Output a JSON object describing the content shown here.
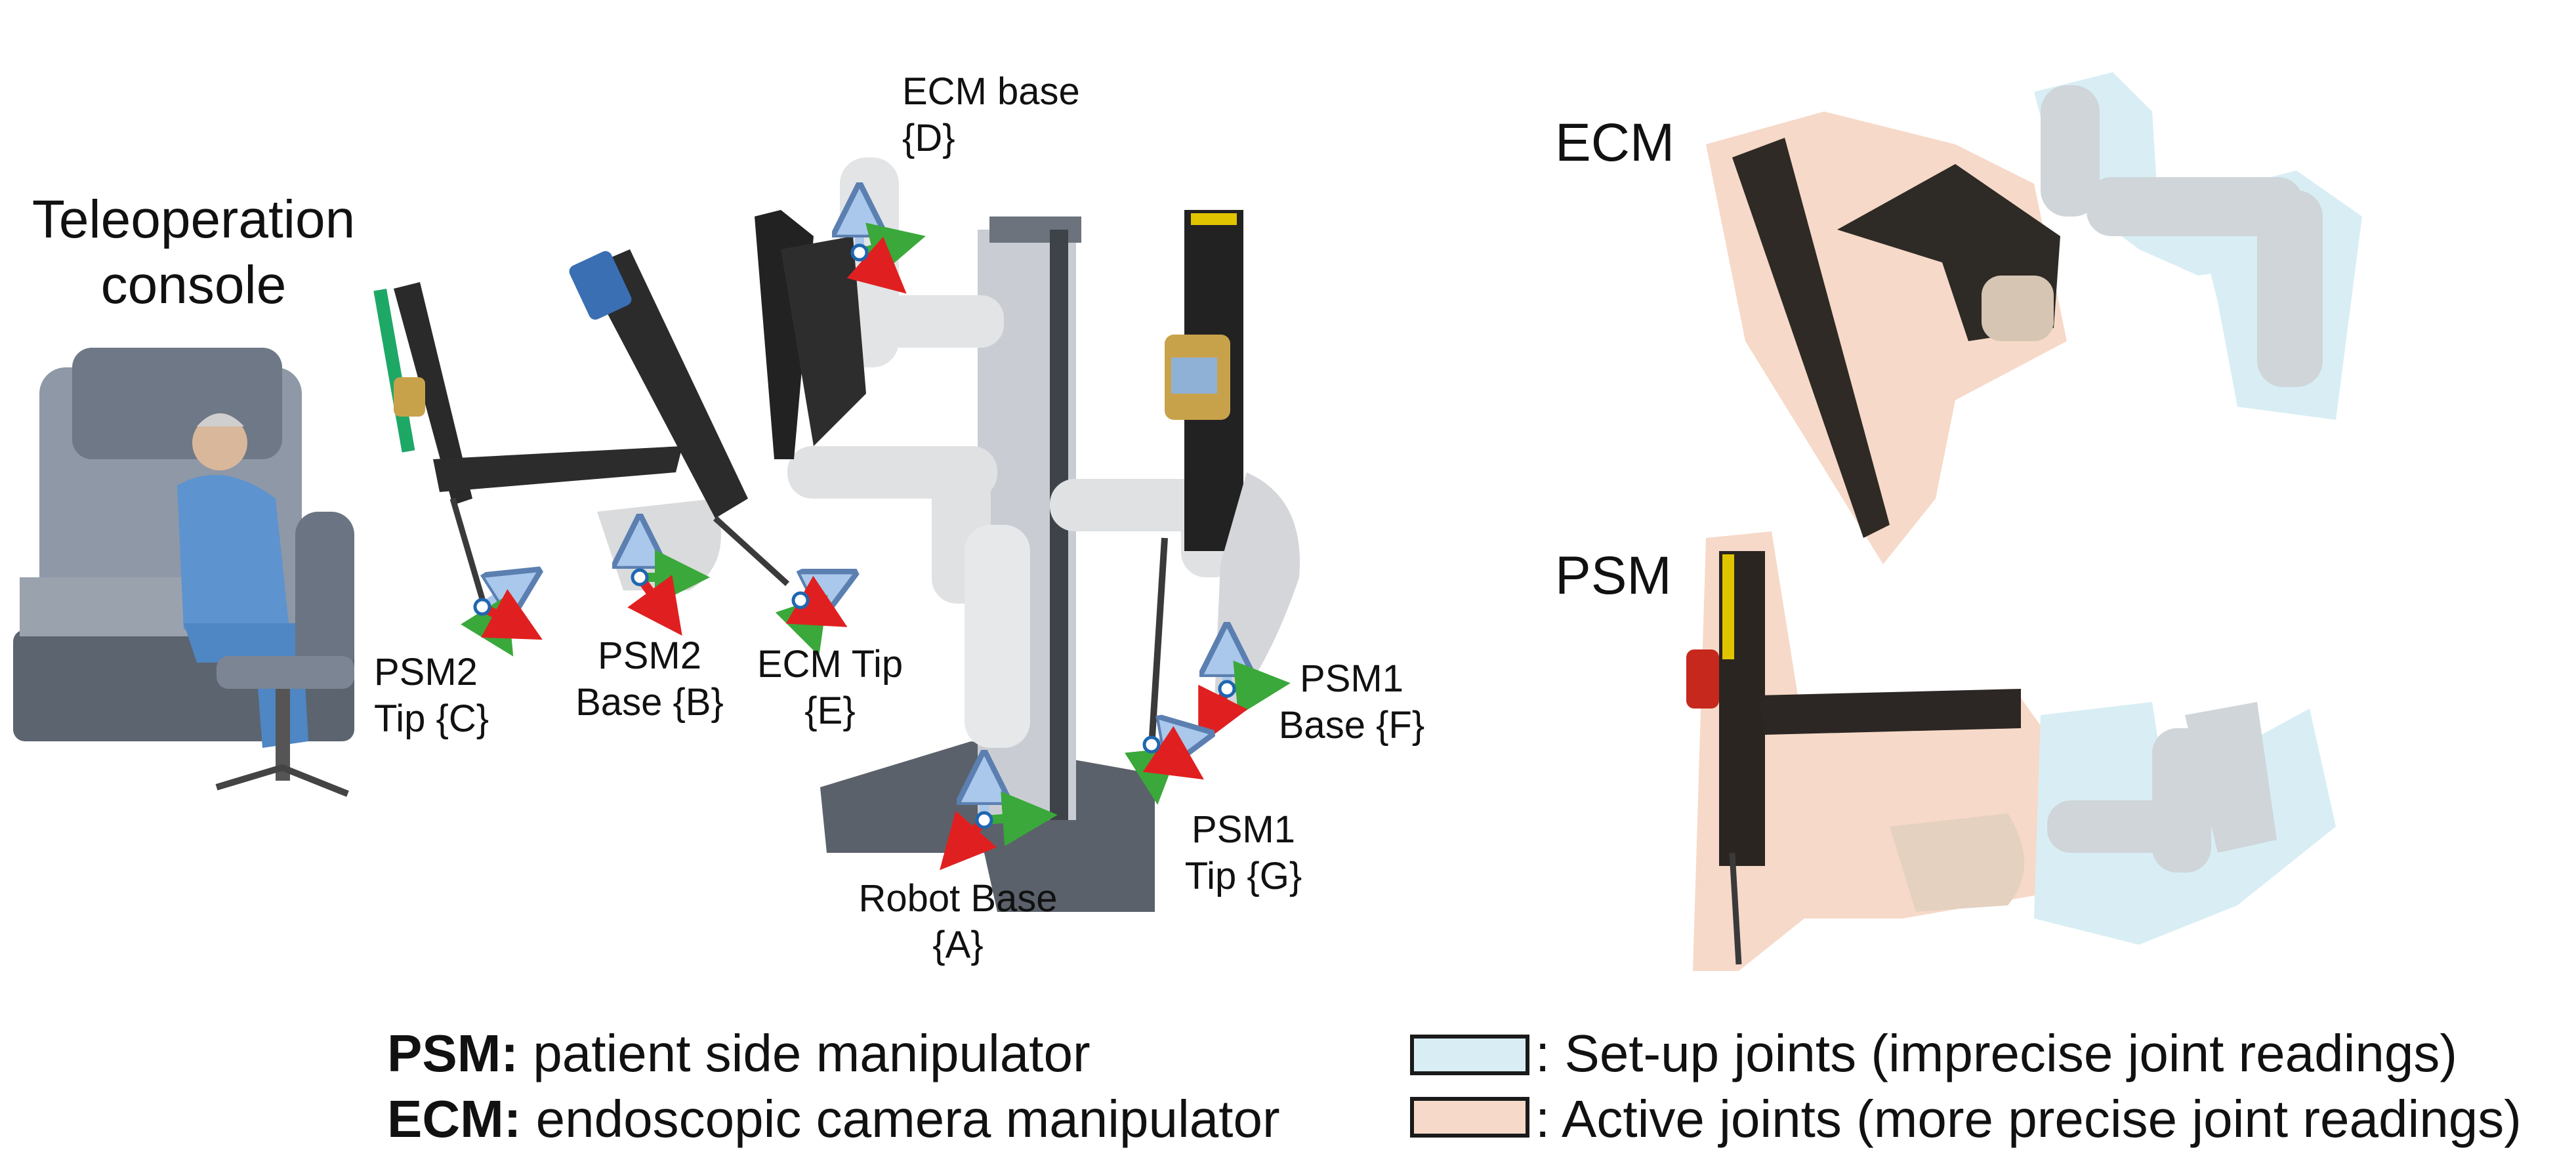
{
  "console": {
    "title": "Teleoperation console"
  },
  "frames": {
    "ecm_base": "ECM base {D}",
    "psm2_tip": "PSM2 Tip {C}",
    "psm2_base": "PSM2 Base {B}",
    "ecm_tip": "ECM Tip {E}",
    "psm1_base": "PSM1 Base {F}",
    "robot_base": "Robot Base {A}",
    "psm1_tip": "PSM1 Tip {G}"
  },
  "arm_panels": {
    "ecm": "ECM",
    "psm": "PSM"
  },
  "legend": {
    "psm_abbr": "PSM:",
    "psm_desc": " patient side manipulator",
    "ecm_abbr": "ECM:",
    "ecm_desc": " endoscopic camera manipulator",
    "setup_label": ": Set-up joints (imprecise joint readings)",
    "active_label": ": Active joints (more precise joint readings)"
  },
  "colors": {
    "setup_fill": "#d8eef4",
    "active_fill": "#f6d9c8",
    "axis_x": "#e02020",
    "axis_y": "#3aa83a",
    "axis_z": "#a9c8ec"
  },
  "icons": [
    "frame-axes-icon"
  ]
}
